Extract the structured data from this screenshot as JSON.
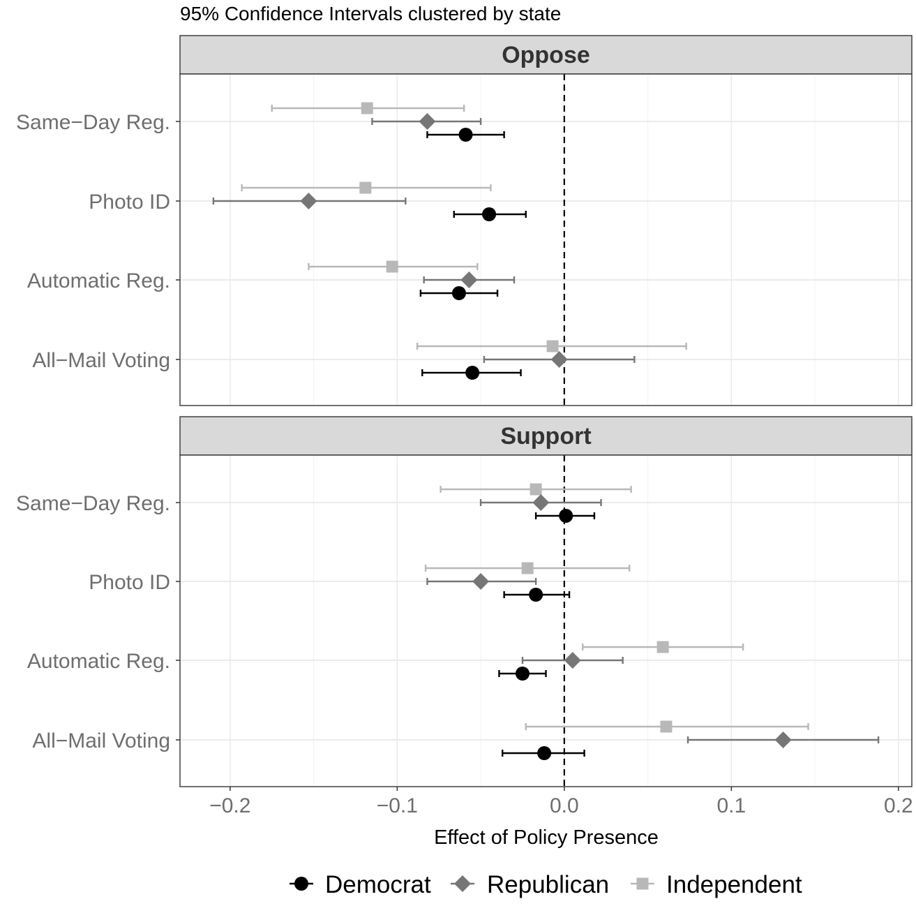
{
  "chart_data": {
    "type": "scatter",
    "subtitle": "95% Confidence Intervals clustered by state",
    "xlabel": "Effect of Policy Presence",
    "xlim": [
      -0.23,
      0.208
    ],
    "x_ticks": [
      -0.2,
      -0.1,
      0.0,
      0.1,
      0.2
    ],
    "x_tick_labels": [
      "−0.2",
      "−0.1",
      "0.0",
      "0.1",
      "0.2"
    ],
    "reference_line": 0.0,
    "grid": true,
    "legend_position": "bottom",
    "categories": [
      "Same−Day Reg.",
      "Photo ID",
      "Automatic Reg.",
      "All−Mail Voting"
    ],
    "series": [
      {
        "name": "Democrat",
        "shape": "circle",
        "color": "#000000"
      },
      {
        "name": "Republican",
        "shape": "diamond",
        "color": "#767676"
      },
      {
        "name": "Independent",
        "shape": "square",
        "color": "#b8b8b8"
      }
    ],
    "panels": [
      {
        "title": "Oppose",
        "data": {
          "Independent": [
            {
              "category": "Same−Day Reg.",
              "estimate": -0.118,
              "lower": -0.175,
              "upper": -0.06
            },
            {
              "category": "Photo ID",
              "estimate": -0.119,
              "lower": -0.193,
              "upper": -0.044
            },
            {
              "category": "Automatic Reg.",
              "estimate": -0.103,
              "lower": -0.153,
              "upper": -0.052
            },
            {
              "category": "All−Mail Voting",
              "estimate": -0.007,
              "lower": -0.088,
              "upper": 0.073
            }
          ],
          "Republican": [
            {
              "category": "Same−Day Reg.",
              "estimate": -0.082,
              "lower": -0.115,
              "upper": -0.05
            },
            {
              "category": "Photo ID",
              "estimate": -0.153,
              "lower": -0.21,
              "upper": -0.095
            },
            {
              "category": "Automatic Reg.",
              "estimate": -0.057,
              "lower": -0.084,
              "upper": -0.03
            },
            {
              "category": "All−Mail Voting",
              "estimate": -0.003,
              "lower": -0.048,
              "upper": 0.042
            }
          ],
          "Democrat": [
            {
              "category": "Same−Day Reg.",
              "estimate": -0.059,
              "lower": -0.082,
              "upper": -0.036
            },
            {
              "category": "Photo ID",
              "estimate": -0.045,
              "lower": -0.066,
              "upper": -0.023
            },
            {
              "category": "Automatic Reg.",
              "estimate": -0.063,
              "lower": -0.086,
              "upper": -0.04
            },
            {
              "category": "All−Mail Voting",
              "estimate": -0.055,
              "lower": -0.085,
              "upper": -0.026
            }
          ]
        }
      },
      {
        "title": "Support",
        "data": {
          "Independent": [
            {
              "category": "Same−Day Reg.",
              "estimate": -0.017,
              "lower": -0.074,
              "upper": 0.04
            },
            {
              "category": "Photo ID",
              "estimate": -0.022,
              "lower": -0.083,
              "upper": 0.039
            },
            {
              "category": "Automatic Reg.",
              "estimate": 0.059,
              "lower": 0.011,
              "upper": 0.107
            },
            {
              "category": "All−Mail Voting",
              "estimate": 0.061,
              "lower": -0.023,
              "upper": 0.146
            }
          ],
          "Republican": [
            {
              "category": "Same−Day Reg.",
              "estimate": -0.014,
              "lower": -0.05,
              "upper": 0.022
            },
            {
              "category": "Photo ID",
              "estimate": -0.05,
              "lower": -0.082,
              "upper": -0.017
            },
            {
              "category": "Automatic Reg.",
              "estimate": 0.005,
              "lower": -0.025,
              "upper": 0.035
            },
            {
              "category": "All−Mail Voting",
              "estimate": 0.131,
              "lower": 0.074,
              "upper": 0.188
            }
          ],
          "Democrat": [
            {
              "category": "Same−Day Reg.",
              "estimate": 0.001,
              "lower": -0.017,
              "upper": 0.018
            },
            {
              "category": "Photo ID",
              "estimate": -0.017,
              "lower": -0.036,
              "upper": 0.003
            },
            {
              "category": "Automatic Reg.",
              "estimate": -0.025,
              "lower": -0.039,
              "upper": -0.011
            },
            {
              "category": "All−Mail Voting",
              "estimate": -0.012,
              "lower": -0.037,
              "upper": 0.012
            }
          ]
        }
      }
    ]
  }
}
